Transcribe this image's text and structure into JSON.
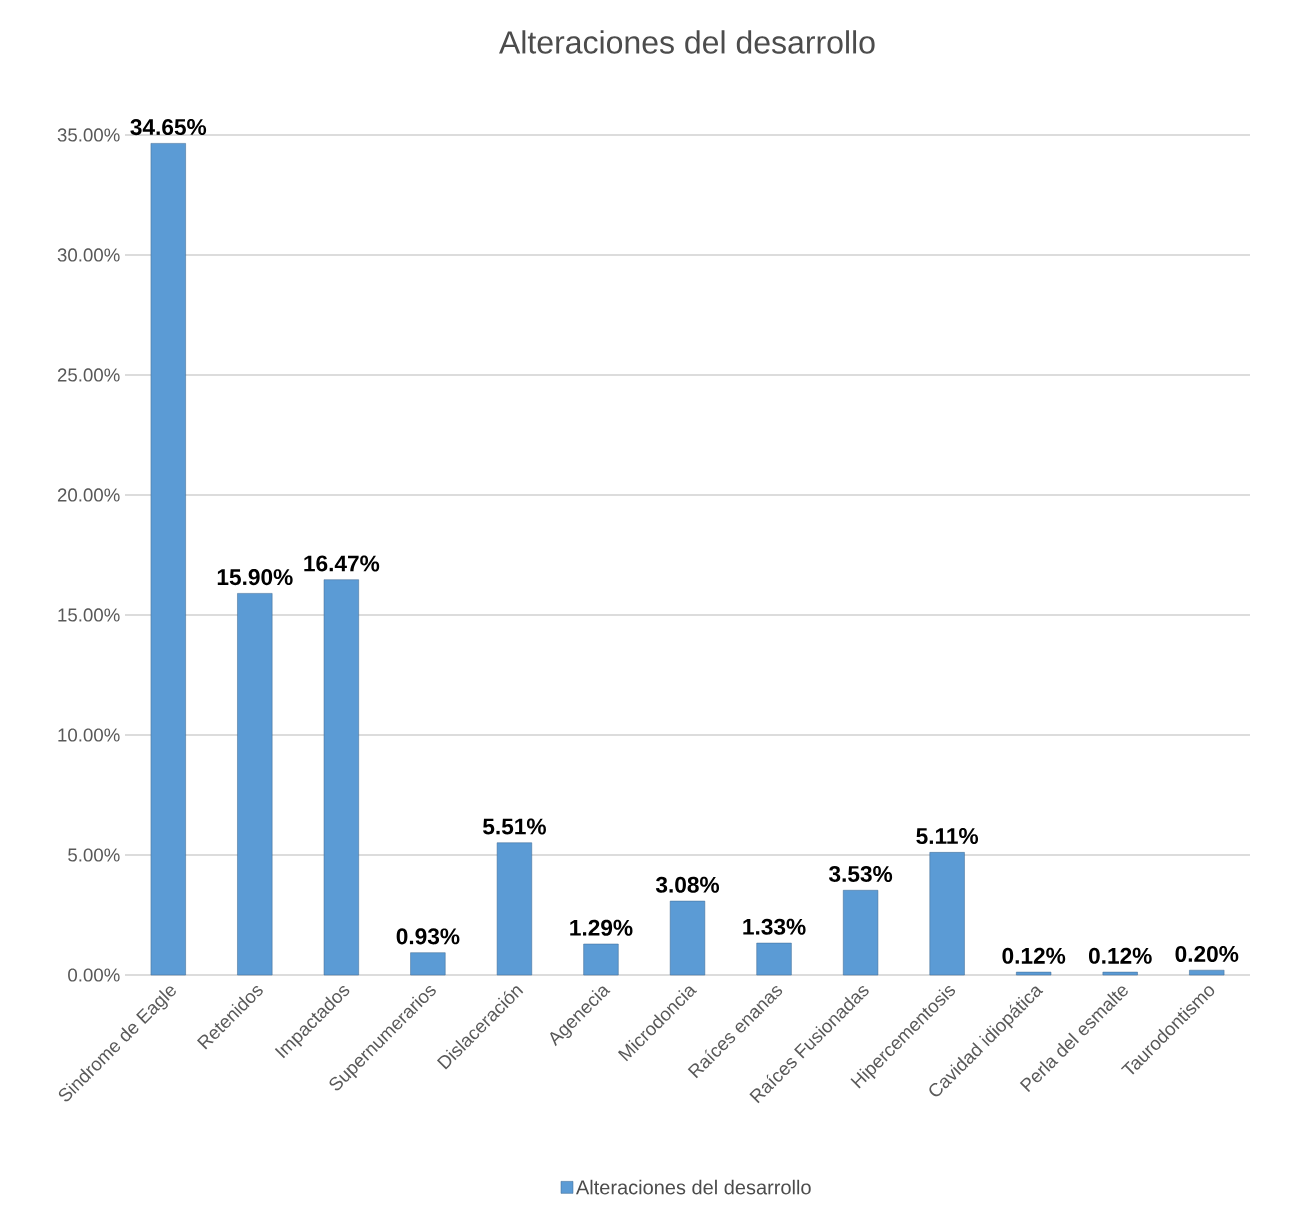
{
  "chart_data": {
    "type": "bar",
    "title": "Alteraciones del desarrollo",
    "categories": [
      "Sindrome de Eagle",
      "Retenidos",
      "Impactados",
      "Supernumerarios",
      "Dislaceración",
      "Agenecia",
      "Microdoncia",
      "Raíces enanas",
      "Raíces Fusionadas",
      "Hipercementosis",
      "Cavidad idiopática",
      "Perla del esmalte",
      "Taurodontismo"
    ],
    "series": [
      {
        "name": "Alteraciones del desarrollo",
        "color": "#5b9bd5",
        "values": [
          34.65,
          15.9,
          16.47,
          0.93,
          5.51,
          1.29,
          3.08,
          1.33,
          3.53,
          5.11,
          0.12,
          0.12,
          0.2
        ],
        "value_labels": [
          "34.65%",
          "15.90%",
          "16.47%",
          "0.93%",
          "5.51%",
          "1.29%",
          "3.08%",
          "1.33%",
          "3.53%",
          "5.11%",
          "0.12%",
          "0.12%",
          "0.20%"
        ]
      }
    ],
    "ylim": [
      0,
      35
    ],
    "yticks": [
      {
        "value": 0,
        "label": "0.00%"
      },
      {
        "value": 5,
        "label": "5.00%"
      },
      {
        "value": 10,
        "label": "10.00%"
      },
      {
        "value": 15,
        "label": "15.00%"
      },
      {
        "value": 20,
        "label": "20.00%"
      },
      {
        "value": 25,
        "label": "25.00%"
      },
      {
        "value": 30,
        "label": "30.00%"
      },
      {
        "value": 35,
        "label": "35.00%"
      }
    ],
    "grid": "y",
    "legend": "bottom"
  }
}
